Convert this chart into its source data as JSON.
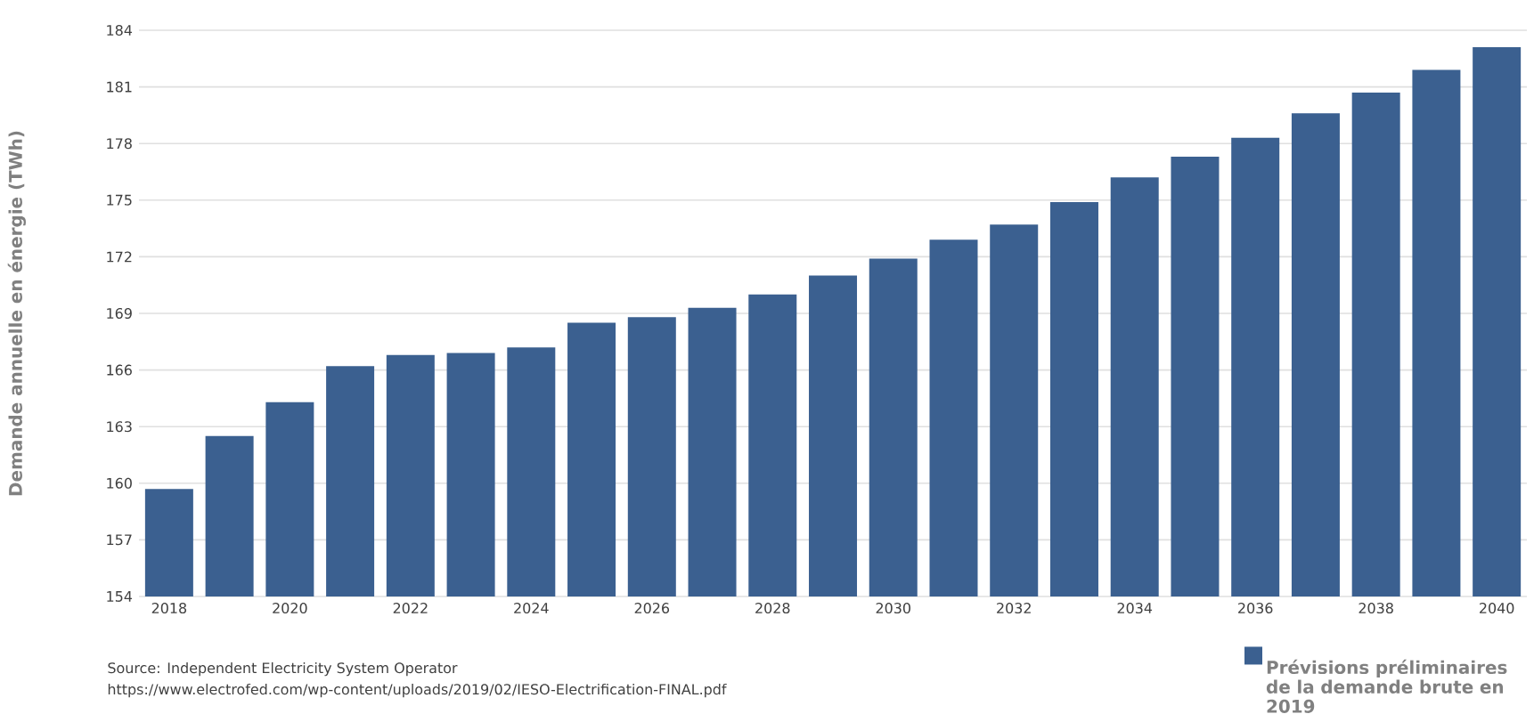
{
  "chart_data": {
    "type": "bar",
    "ylabel": "Demande annuelle en énergie (TWh)",
    "categories": [
      "2018",
      null,
      "2020",
      null,
      "2022",
      null,
      "2024",
      null,
      "2026",
      null,
      "2028",
      null,
      "2030",
      null,
      "2032",
      null,
      "2034",
      null,
      "2036",
      null,
      "2038",
      null,
      "2040"
    ],
    "series": [
      {
        "name": "Prévisions préliminaires de la demande brute en 2019",
        "color": "#3b6090",
        "values": [
          159.7,
          162.5,
          164.3,
          166.2,
          166.8,
          166.9,
          167.2,
          168.5,
          168.8,
          169.3,
          170.0,
          171.0,
          171.9,
          172.9,
          173.7,
          174.9,
          176.2,
          177.3,
          178.3,
          179.6,
          180.7,
          181.9,
          183.1
        ]
      }
    ],
    "ylim": [
      154,
      184
    ],
    "yticks": [
      154,
      157,
      160,
      163,
      166,
      169,
      172,
      175,
      178,
      181,
      184
    ],
    "grid": "y",
    "legend": "bottom right",
    "annotations": [
      "Source: Independent Electricity System Operator",
      "https://www.electrofed.com/wp-content/uploads/2019/02/IESO-Electrification-FINAL.pdf"
    ]
  }
}
